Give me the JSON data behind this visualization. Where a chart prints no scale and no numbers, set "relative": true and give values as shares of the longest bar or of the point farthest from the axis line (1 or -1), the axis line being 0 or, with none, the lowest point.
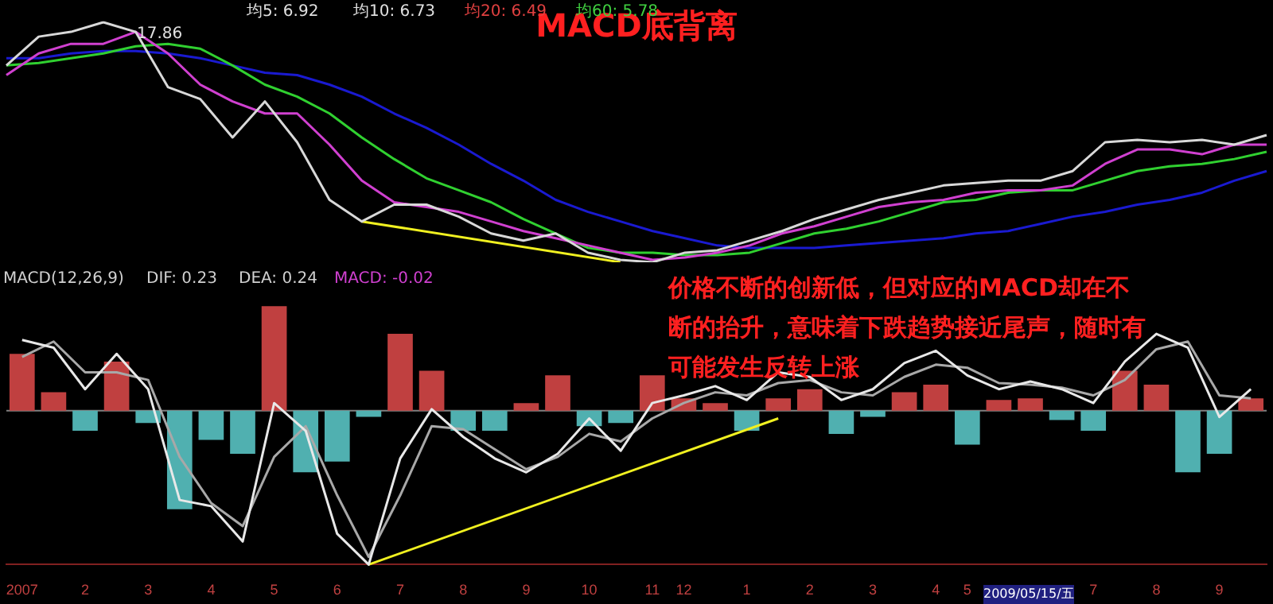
{
  "chart_data": [
    {
      "type": "line",
      "title": "MACD底背离",
      "relative": true,
      "tick_labels": false,
      "categories": [
        null,
        null,
        null,
        null,
        null,
        null,
        null,
        null,
        null,
        null,
        null,
        null,
        null,
        null,
        null,
        null,
        null,
        null,
        null,
        null,
        null,
        null,
        null,
        null,
        null,
        null,
        null,
        null,
        null,
        null,
        null,
        null,
        null,
        null,
        null,
        null,
        null,
        null,
        null,
        null
      ],
      "series": [
        {
          "color": "#d8d8d8",
          "values": [
            0.82,
            0.94,
            0.96,
            1,
            0.96,
            0.73,
            0.68,
            0.52,
            0.67,
            0.5,
            0.26,
            0.17,
            0.24,
            0.24,
            0.19,
            0.12,
            0.09,
            0.12,
            0.04,
            0.01,
            0,
            0.04,
            0.05,
            0.09,
            0.13,
            0.18,
            0.22,
            0.26,
            0.29,
            0.32,
            0.33,
            0.34,
            0.34,
            0.38,
            0.5,
            0.51,
            0.5,
            0.51,
            0.49,
            0.53
          ]
        },
        {
          "color": "#d040d0",
          "values": [
            0.78,
            0.87,
            0.91,
            0.91,
            0.96,
            0.87,
            0.74,
            0.67,
            0.62,
            0.62,
            0.49,
            0.34,
            0.25,
            0.23,
            0.21,
            0.17,
            0.13,
            0.1,
            0.07,
            0.04,
            0.01,
            0.02,
            0.04,
            0.07,
            0.12,
            0.15,
            0.19,
            0.23,
            0.25,
            0.26,
            0.29,
            0.3,
            0.3,
            0.32,
            0.41,
            0.47,
            0.47,
            0.45,
            0.49,
            0.49
          ]
        },
        {
          "color": "#30d030",
          "values": [
            0.82,
            0.83,
            0.85,
            0.87,
            0.9,
            0.91,
            0.89,
            0.82,
            0.74,
            0.69,
            0.62,
            0.52,
            0.43,
            0.35,
            0.3,
            0.25,
            0.18,
            0.12,
            0.06,
            0.04,
            0.04,
            0.03,
            0.03,
            0.04,
            0.08,
            0.12,
            0.14,
            0.17,
            0.21,
            0.25,
            0.26,
            0.29,
            0.3,
            0.3,
            0.34,
            0.38,
            0.4,
            0.41,
            0.43,
            0.46
          ]
        },
        {
          "color": "#1a1ad0",
          "values": [
            0.85,
            0.85,
            0.87,
            0.88,
            0.88,
            0.87,
            0.85,
            0.82,
            0.79,
            0.78,
            0.74,
            0.69,
            0.62,
            0.56,
            0.49,
            0.41,
            0.34,
            0.26,
            0.21,
            0.17,
            0.13,
            0.1,
            0.07,
            0.06,
            0.06,
            0.06,
            0.07,
            0.08,
            0.09,
            0.1,
            0.12,
            0.13,
            0.16,
            0.19,
            0.21,
            0.24,
            0.26,
            0.29,
            0.34,
            0.38
          ]
        },
        {
          "color": "#f0f020",
          "values": [
            null,
            null,
            null,
            null,
            null,
            null,
            null,
            null,
            null,
            null,
            null,
            0.17,
            null,
            null,
            null,
            null,
            null,
            null,
            null,
            0,
            null,
            null,
            null,
            null,
            null,
            null,
            null,
            null,
            null,
            null,
            null,
            null,
            null,
            null,
            null,
            null,
            null,
            null,
            null,
            null
          ]
        }
      ],
      "annotations": [
        "均5: 6.92",
        "均10: 6.73",
        "均20: 6.49",
        "均60: 5.78",
        "17.86"
      ]
    },
    {
      "type": "bar",
      "relative": true,
      "tick_labels": "x",
      "categories": [
        "2007",
        null,
        "2",
        null,
        "3",
        null,
        "4",
        null,
        "5",
        null,
        "6",
        null,
        "7",
        null,
        "8",
        null,
        "9",
        null,
        "10",
        null,
        "11",
        "12",
        null,
        "1",
        null,
        "2",
        null,
        "3",
        null,
        "4",
        "5",
        null,
        null,
        null,
        "7",
        null,
        "8",
        null,
        "9",
        null
      ],
      "series": [
        {
          "type": "bar",
          "values": [
            0.37,
            0.12,
            -0.13,
            0.32,
            -0.08,
            -0.64,
            -0.19,
            -0.28,
            0.68,
            -0.4,
            -0.33,
            -0.04,
            0.5,
            0.26,
            -0.13,
            -0.13,
            0.05,
            0.23,
            -0.1,
            -0.08,
            0.23,
            0.08,
            0.05,
            -0.13,
            0.08,
            0.14,
            -0.15,
            -0.04,
            0.12,
            0.17,
            -0.22,
            0.07,
            0.08,
            -0.06,
            -0.13,
            0.26,
            0.17,
            -0.4,
            -0.28,
            0.08
          ],
          "colors": [
            "#c04040",
            "#c04040",
            "#50b0b0",
            "#c04040",
            "#50b0b0",
            "#50b0b0",
            "#50b0b0",
            "#50b0b0",
            "#c04040",
            "#50b0b0",
            "#50b0b0",
            "#50b0b0",
            "#c04040",
            "#c04040",
            "#50b0b0",
            "#50b0b0",
            "#c04040",
            "#c04040",
            "#50b0b0",
            "#50b0b0",
            "#c04040",
            "#c04040",
            "#c04040",
            "#50b0b0",
            "#c04040",
            "#c04040",
            "#50b0b0",
            "#50b0b0",
            "#c04040",
            "#c04040",
            "#50b0b0",
            "#c04040",
            "#c04040",
            "#50b0b0",
            "#50b0b0",
            "#c04040",
            "#c04040",
            "#50b0b0",
            "#50b0b0",
            "#c04040"
          ]
        },
        {
          "type": "line",
          "color": "#e8e8e8",
          "values": [
            0.46,
            0.41,
            0.14,
            0.37,
            0.14,
            -0.58,
            -0.62,
            -0.85,
            0.05,
            -0.13,
            -0.8,
            -1,
            -0.31,
            0.01,
            -0.17,
            -0.31,
            -0.4,
            -0.28,
            -0.05,
            -0.26,
            0.05,
            0.1,
            0.16,
            0.07,
            0.25,
            0.22,
            0.07,
            0.14,
            0.31,
            0.39,
            0.23,
            0.14,
            0.19,
            0.14,
            0.05,
            0.32,
            0.5,
            0.41,
            -0.04,
            0.14
          ]
        },
        {
          "type": "line",
          "color": "#a8a8a8",
          "values": [
            0.35,
            0.45,
            0.25,
            0.25,
            0.2,
            -0.3,
            -0.6,
            -0.75,
            -0.3,
            -0.1,
            -0.55,
            -0.95,
            -0.55,
            -0.1,
            -0.12,
            -0.25,
            -0.38,
            -0.3,
            -0.15,
            -0.2,
            -0.05,
            0.05,
            0.12,
            0.1,
            0.18,
            0.2,
            0.12,
            0.1,
            0.22,
            0.3,
            0.28,
            0.18,
            0.17,
            0.15,
            0.1,
            0.2,
            0.4,
            0.45,
            0.1,
            0.08
          ]
        },
        {
          "type": "line",
          "color": "#f0f020",
          "values": [
            null,
            null,
            null,
            null,
            null,
            null,
            null,
            null,
            null,
            null,
            null,
            -1,
            null,
            null,
            null,
            null,
            null,
            null,
            null,
            null,
            null,
            null,
            null,
            null,
            -0.05,
            null,
            null,
            null,
            null,
            null,
            null,
            null,
            null,
            null,
            null,
            null,
            null,
            null,
            null,
            null
          ]
        }
      ],
      "annotations": [
        "MACD(12,26,9)",
        "DIF: 0.23",
        "DEA: 0.24",
        "MACD: -0.02",
        "价格不断的创新低，但对应的MACD却在不断的抬升，意味着下跌趋势接近尾声，随时有可能发生反转上涨",
        "2009/05/15/五"
      ]
    }
  ]
}
